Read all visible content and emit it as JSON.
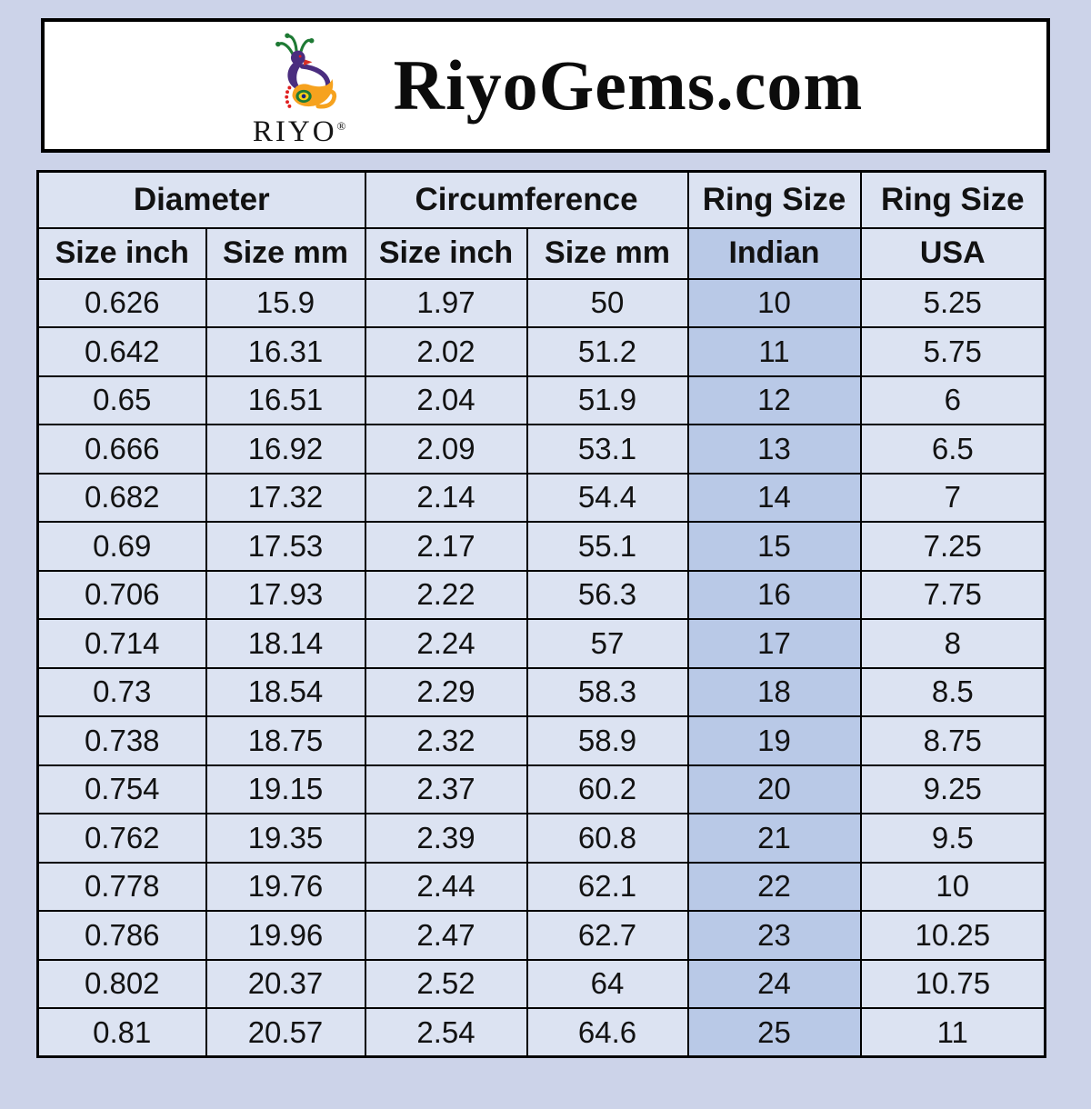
{
  "page": {
    "background": "#ccd3e9"
  },
  "header": {
    "title": "RiyoGems.com",
    "logo_text": "RIYO",
    "logo_mark": "®"
  },
  "table": {
    "group_headers": [
      {
        "label": "Diameter",
        "span": 2
      },
      {
        "label": "Circumference",
        "span": 2
      },
      {
        "label": "Ring Size",
        "span": 1
      },
      {
        "label": "Ring Size",
        "span": 1
      }
    ],
    "sub_headers": [
      "Size inch",
      "Size mm",
      "Size inch",
      "Size mm",
      "Indian",
      "USA"
    ],
    "col_keys": [
      "diameter-inch",
      "diameter-mm",
      "circumference-inch",
      "circumference-mm",
      "ring-size-indian",
      "ring-size-usa"
    ],
    "highlight_column_index": 4
  },
  "colors": {
    "page_bg": "#ccd3e9",
    "header_box_bg": "#ffffff",
    "cell_bg": "#dce3f2",
    "highlight_bg": "#b9c9e7",
    "border": "#000000",
    "logo_green": "#1e7a34",
    "logo_purple": "#4a2d7f",
    "logo_orange": "#f6a21e",
    "logo_red": "#e02020",
    "logo_yellow": "#f4d015",
    "logo_navy": "#1a237e"
  },
  "chart_data": {
    "type": "table",
    "title": "RiyoGems.com",
    "columns": [
      "Diameter Size inch",
      "Diameter Size mm",
      "Circumference Size inch",
      "Circumference Size mm",
      "Ring Size Indian",
      "Ring Size USA"
    ],
    "rows": [
      [
        "0.626",
        "15.9",
        "1.97",
        "50",
        "10",
        "5.25"
      ],
      [
        "0.642",
        "16.31",
        "2.02",
        "51.2",
        "11",
        "5.75"
      ],
      [
        "0.65",
        "16.51",
        "2.04",
        "51.9",
        "12",
        "6"
      ],
      [
        "0.666",
        "16.92",
        "2.09",
        "53.1",
        "13",
        "6.5"
      ],
      [
        "0.682",
        "17.32",
        "2.14",
        "54.4",
        "14",
        "7"
      ],
      [
        "0.69",
        "17.53",
        "2.17",
        "55.1",
        "15",
        "7.25"
      ],
      [
        "0.706",
        "17.93",
        "2.22",
        "56.3",
        "16",
        "7.75"
      ],
      [
        "0.714",
        "18.14",
        "2.24",
        "57",
        "17",
        "8"
      ],
      [
        "0.73",
        "18.54",
        "2.29",
        "58.3",
        "18",
        "8.5"
      ],
      [
        "0.738",
        "18.75",
        "2.32",
        "58.9",
        "19",
        "8.75"
      ],
      [
        "0.754",
        "19.15",
        "2.37",
        "60.2",
        "20",
        "9.25"
      ],
      [
        "0.762",
        "19.35",
        "2.39",
        "60.8",
        "21",
        "9.5"
      ],
      [
        "0.778",
        "19.76",
        "2.44",
        "62.1",
        "22",
        "10"
      ],
      [
        "0.786",
        "19.96",
        "2.47",
        "62.7",
        "23",
        "10.25"
      ],
      [
        "0.802",
        "20.37",
        "2.52",
        "64",
        "24",
        "10.75"
      ],
      [
        "0.81",
        "20.57",
        "2.54",
        "64.6",
        "25",
        "11"
      ]
    ]
  }
}
